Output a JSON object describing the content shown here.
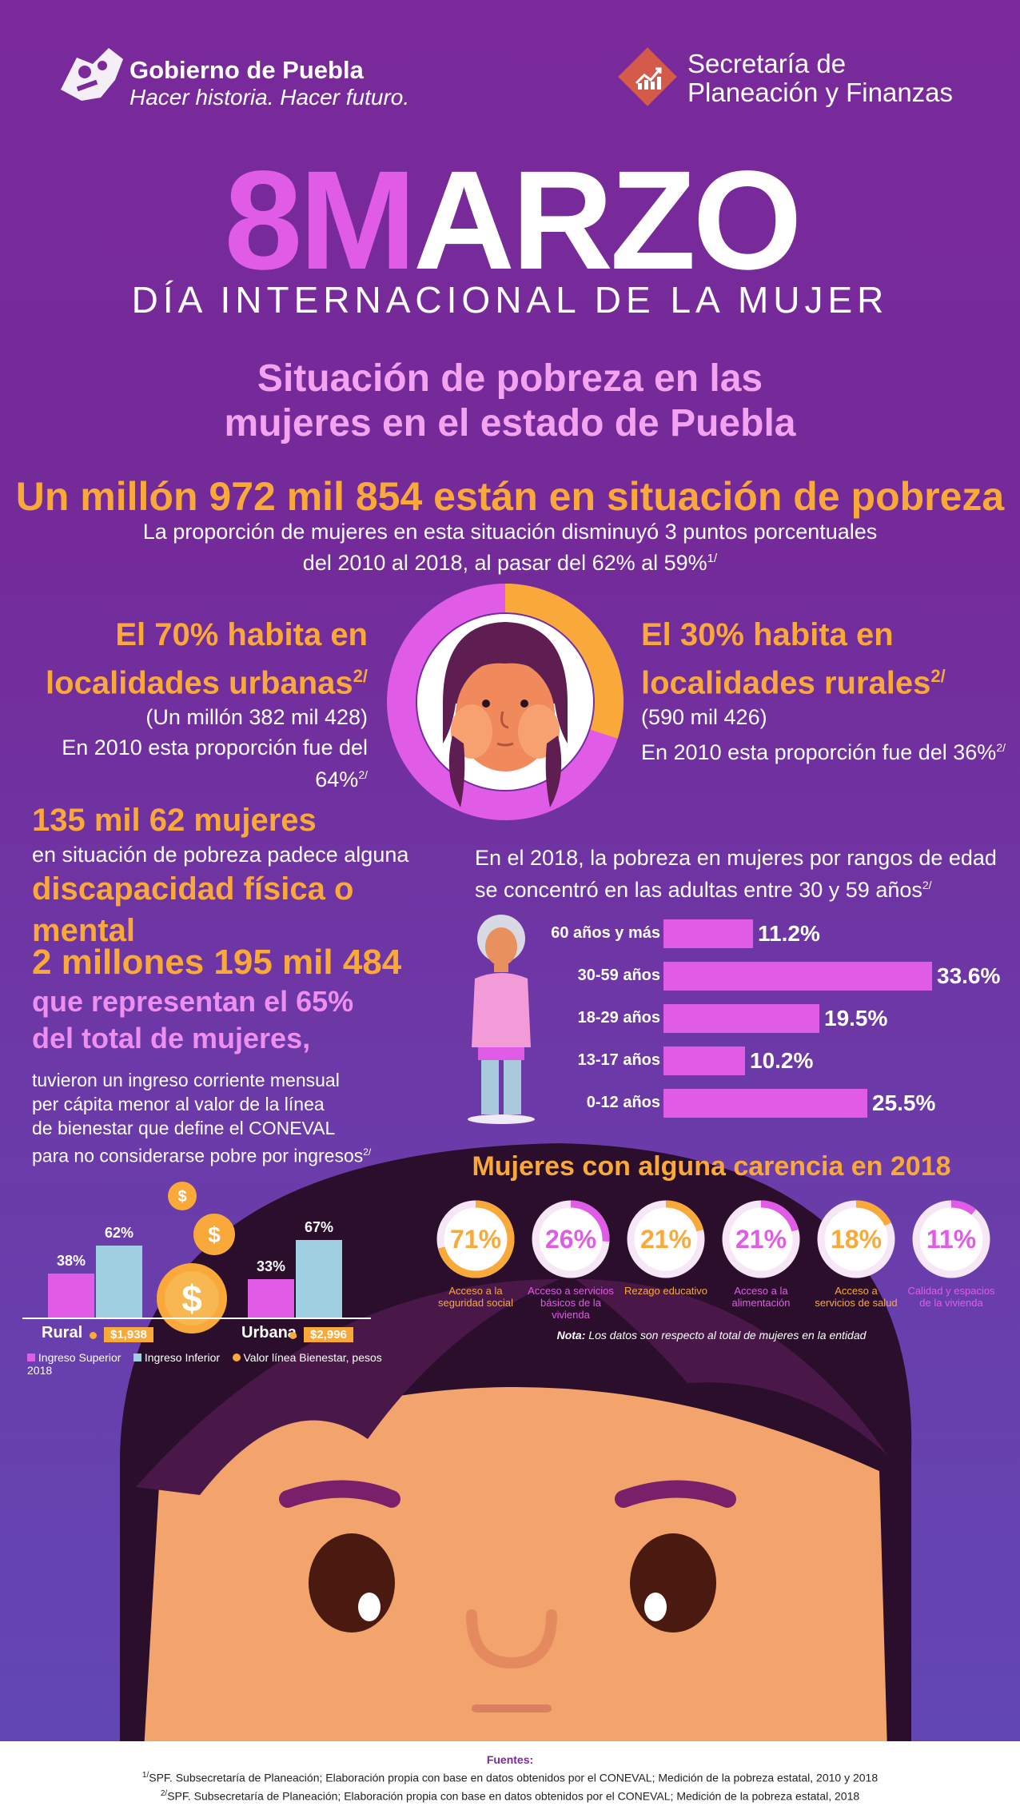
{
  "header": {
    "gov_name": "Gobierno de Puebla",
    "gov_slogan": "Hacer historia. Hacer futuro.",
    "secretaria_line1": "Secretaría de",
    "secretaria_line2": "Planeación y Finanzas"
  },
  "hero": {
    "title_part1": "8M",
    "title_part2": "ARZO",
    "subtitle": "DÍA INTERNACIONAL DE LA MUJER"
  },
  "section": {
    "title_line1": "Situación de pobreza en las",
    "title_line2": "mujeres en el estado de Puebla"
  },
  "headline": {
    "main": "Un millón 972 mil 854 están en situación de pobreza",
    "desc_line1": "La proporción de mujeres en esta situación disminuyó 3 puntos porcentuales",
    "desc_line2": "del 2010 al 2018, al pasar del 62% al 59%",
    "desc_sup": "1/"
  },
  "urban": {
    "line1": "El 70% habita en",
    "line2": "localidades urbanas",
    "sup": "2/",
    "count": "(Un millón 382 mil 428)",
    "note": "En 2010 esta proporción fue del 64%",
    "note_sup": "2/",
    "share": 70,
    "color": "#e05ce6"
  },
  "rural": {
    "line1": "El 30% habita en",
    "line2": "localidades rurales",
    "sup": "2/",
    "count": "(590 mil 426)",
    "note": "En 2010 esta proporción fue del 36%",
    "note_sup": "2/",
    "share": 30,
    "color": "#f9a93a"
  },
  "disability": {
    "line1": "135 mil 62 mujeres",
    "line2": "en situación de pobreza padece alguna",
    "line3": "discapacidad física o mental"
  },
  "income": {
    "line1": "2 millones 195 mil 484",
    "line2": "que representan el 65%",
    "line3": "del total de mujeres,",
    "desc1": "tuvieron un ingreso corriente mensual",
    "desc2": "per cápita menor al valor de la línea",
    "desc3": "de bienestar que define el CONEVAL",
    "desc4": "para no considerarse pobre por ingresos",
    "desc_sup": "2/"
  },
  "age": {
    "title_line1": "En el 2018, la pobreza en mujeres por rangos de edad",
    "title_line2": "se concentró en las adultas entre 30 y 59 años",
    "title_sup": "2/"
  },
  "chart_data": [
    {
      "type": "bar",
      "orientation": "horizontal",
      "categories": [
        "60 años y más",
        "30-59 años",
        "18-29 años",
        "13-17 años",
        "0-12 años"
      ],
      "values": [
        11.2,
        33.6,
        19.5,
        10.2,
        25.5
      ],
      "labels": [
        "11.2%",
        "33.6%",
        "19.5%",
        "10.2%",
        "25.5%"
      ],
      "color": "#e05ce6"
    },
    {
      "type": "bar",
      "categories": [
        "Rural",
        "Urbana"
      ],
      "series": [
        {
          "name": "Ingreso Superior",
          "values": [
            38,
            33
          ],
          "labels": [
            "38%",
            "33%"
          ],
          "color": "#e05ce6"
        },
        {
          "name": "Ingreso Inferior",
          "values": [
            62,
            67
          ],
          "labels": [
            "62%",
            "67%"
          ],
          "color": "#9fd0e2"
        }
      ],
      "line_values": [
        "$1,938",
        "$2,996"
      ],
      "line_legend": "Valor línea Bienestar, pesos 2018",
      "ylim": [
        0,
        100
      ]
    }
  ],
  "carencias": {
    "title": "Mujeres con alguna carencia en 2018",
    "items": [
      {
        "pct": 71,
        "label": "71%",
        "line1": "Acceso a la",
        "line2": "seguridad social",
        "color": "#f9a93a"
      },
      {
        "pct": 26,
        "label": "26%",
        "line1": "Acceso a servicios",
        "line2": "básicos de la vivienda",
        "color": "#e05ce6"
      },
      {
        "pct": 21,
        "label": "21%",
        "line1": "Rezago educativo",
        "line2": "",
        "color": "#f9a93a"
      },
      {
        "pct": 21,
        "label": "21%",
        "line1": "Acceso a la",
        "line2": "alimentación",
        "color": "#e05ce6"
      },
      {
        "pct": 18,
        "label": "18%",
        "line1": "Acceso a",
        "line2": "servicios de salud",
        "color": "#f9a93a"
      },
      {
        "pct": 11,
        "label": "11%",
        "line1": "Calidad y espacios",
        "line2": "de la vivienda",
        "color": "#e05ce6"
      }
    ],
    "note_bold": "Nota:",
    "note": " Los datos son respecto al total de mujeres en la entidad"
  },
  "footer": {
    "title": "Fuentes:",
    "src1_sup": "1/",
    "src1": "SPF. Subsecretaría de Planeación; Elaboración propia con base en datos obtenidos por el CONEVAL; Medición de la pobreza estatal, 2010 y 2018",
    "src2_sup": "2/",
    "src2": "SPF. Subsecretaría de Planeación; Elaboración propia con base en datos obtenidos por el CONEVAL; Medición de la pobreza estatal, 2018"
  }
}
